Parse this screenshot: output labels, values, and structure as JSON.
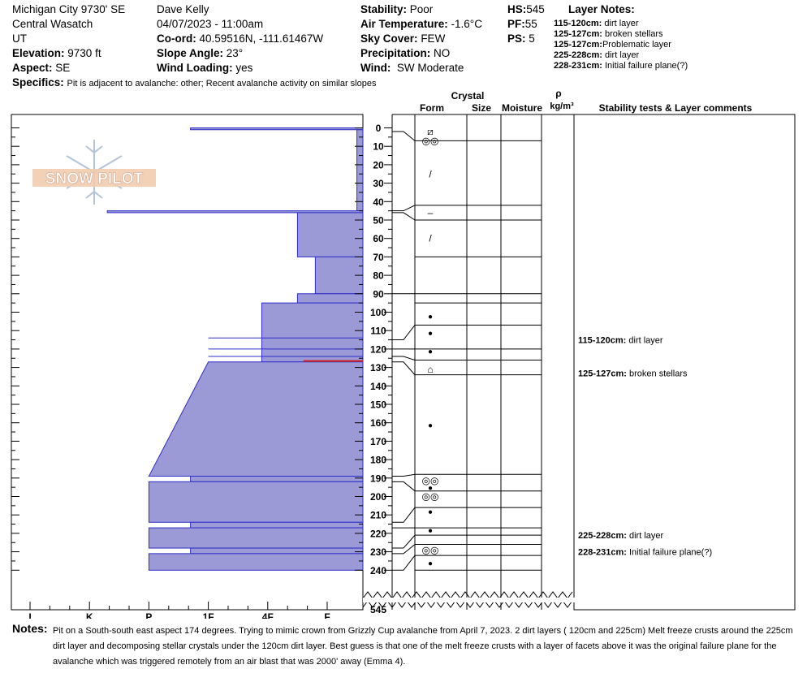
{
  "header": {
    "location": "Michigan City 9730' SE",
    "range": "Central Wasatch",
    "state": "UT",
    "elevation_label": "Elevation:",
    "elevation": "9730 ft",
    "aspect_label": "Aspect:",
    "aspect": "SE",
    "observer": "Dave Kelly",
    "datetime": "04/07/2023 - 11:00am",
    "coord_label": "Co-ord:",
    "coord": "40.59516N, -111.61467W",
    "slope_label": "Slope Angle:",
    "slope": "23°",
    "wind_loading_label": "Wind Loading:",
    "wind_loading": "yes",
    "stability_label": "Stability:",
    "stability": "Poor",
    "air_temp_label": "Air Temperature:",
    "air_temp": "-1.6°C",
    "sky_label": "Sky Cover:",
    "sky": "FEW",
    "precip_label": "Precipitation:",
    "precip": "NO",
    "wind_label": "Wind:",
    "wind": "SW Moderate",
    "hs_label": "HS:",
    "hs": "545",
    "pf_label": "PF:",
    "pf": "55",
    "ps_label": "PS:",
    "ps": "5",
    "specifics_label": "Specifics:",
    "specifics": "Pit is adjacent to avalanche: other;  Recent avalanche activity on similar slopes"
  },
  "layer_notes": {
    "title": "Layer Notes:",
    "items": [
      {
        "range": "115-120cm:",
        "text": "dirt layer"
      },
      {
        "range": "125-127cm:",
        "text": "broken stellars"
      },
      {
        "range": "125-127cm:",
        "text": "Problematic layer"
      },
      {
        "range": "225-228cm:",
        "text": "dirt layer"
      },
      {
        "range": "228-231cm:",
        "text": "Initial failure plane(?)"
      }
    ]
  },
  "columns": {
    "crystal": "Crystal",
    "form": "Form",
    "size": "Size",
    "moisture": "Moisture",
    "rho": "ρ",
    "density_unit": "kg/m³",
    "stability_comments": "Stability tests & Layer comments"
  },
  "watermark": "SNOW PILOT",
  "notes_label": "Notes:",
  "notes": "Pit on a South-south east aspect 174 degrees. Trying to mimic crown from Grizzly Cup avalanche from April 7, 2023. 2 dirt layers ( 120cm and 225cm) Melt freeze crusts around the 225cm dirt layer and decomposing stellar crystals under the 120cm dirt layer. Best guess is that one of the melt freeze crusts with a layer of facets above it was the original failure plane for the avalanche which was triggered remotely from an air blast that was 2000' away (Emma 4).",
  "chart_data": {
    "type": "bar",
    "orientation": "horizontal",
    "y_axis": "depth (cm)",
    "ylim": [
      0,
      240
    ],
    "y_ticks": [
      0,
      10,
      20,
      30,
      40,
      50,
      60,
      70,
      80,
      90,
      100,
      110,
      120,
      130,
      140,
      150,
      160,
      170,
      180,
      190,
      200,
      210,
      220,
      230,
      240
    ],
    "y_break_label": "545",
    "x_categories": [
      "I",
      "K",
      "P",
      "1F",
      "4F",
      "F"
    ],
    "hardness_layers": [
      {
        "top": 0,
        "bottom": 1,
        "hardness": "P+"
      },
      {
        "top": 1,
        "bottom": 45,
        "hardness": "F+"
      },
      {
        "top": 45,
        "bottom": 46,
        "hardness": "K+"
      },
      {
        "top": 46,
        "bottom": 70,
        "hardness": "4F-"
      },
      {
        "top": 70,
        "bottom": 90,
        "hardness": "4F+"
      },
      {
        "top": 90,
        "bottom": 95,
        "hardness": "4F-"
      },
      {
        "top": 95,
        "bottom": 127,
        "hardness": "1F+"
      },
      {
        "top": 127,
        "bottom": 189,
        "hardness_top": "1F",
        "hardness_bottom": "P"
      },
      {
        "top": 189,
        "bottom": 192,
        "hardness": "P+"
      },
      {
        "top": 192,
        "bottom": 214,
        "hardness": "P"
      },
      {
        "top": 214,
        "bottom": 217,
        "hardness": "P+"
      },
      {
        "top": 217,
        "bottom": 228,
        "hardness": "P"
      },
      {
        "top": 228,
        "bottom": 231,
        "hardness": "P+"
      },
      {
        "top": 231,
        "bottom": 240,
        "hardness": "P"
      }
    ],
    "hardness_level_values": [
      [
        0,
        1,
        2.7
      ],
      [
        1,
        45,
        5.5
      ],
      [
        45,
        46,
        1.3
      ],
      [
        46,
        70,
        4.5
      ],
      [
        70,
        90,
        4.8
      ],
      [
        90,
        95,
        4.5
      ],
      [
        95,
        127,
        3.9
      ],
      [
        127,
        189,
        3.0,
        2.0
      ],
      [
        189,
        192,
        2.7
      ],
      [
        192,
        214,
        2.0
      ],
      [
        214,
        217,
        2.7
      ],
      [
        217,
        228,
        2.0
      ],
      [
        228,
        231,
        2.7
      ],
      [
        231,
        240,
        2.0
      ]
    ],
    "hardness_scale": {
      "I": 0,
      "K": 1,
      "P": 2,
      "1F": 3,
      "4F": 4,
      "F": 5
    },
    "horizontal_lines": [
      114,
      120,
      124
    ],
    "red_marker": {
      "depth": 126.5,
      "from_hardness": 4.6
    },
    "right_layer_boundaries": [
      7,
      42,
      50,
      70,
      90,
      95,
      107,
      120,
      126,
      134,
      188,
      197,
      206,
      217,
      221,
      226,
      232,
      240
    ],
    "grain_forms": [
      {
        "depth": 2,
        "symbol": "⧄"
      },
      {
        "depth": 7,
        "symbol": "◎◎"
      },
      {
        "depth": 25,
        "symbol": "/"
      },
      {
        "depth": 46,
        "symbol": "–"
      },
      {
        "depth": 60,
        "symbol": "/"
      },
      {
        "depth": 102,
        "symbol": "●"
      },
      {
        "depth": 111,
        "symbol": "●"
      },
      {
        "depth": 121,
        "symbol": "●"
      },
      {
        "depth": 131,
        "symbol": "⌂"
      },
      {
        "depth": 161,
        "symbol": "●"
      },
      {
        "depth": 191.5,
        "symbol": "◎◎"
      },
      {
        "depth": 195,
        "symbol": "●"
      },
      {
        "depth": 200,
        "symbol": "◎◎"
      },
      {
        "depth": 208,
        "symbol": "●"
      },
      {
        "depth": 218,
        "symbol": "●"
      },
      {
        "depth": 229,
        "symbol": "◎◎"
      },
      {
        "depth": 236,
        "symbol": "●"
      }
    ],
    "comments": [
      {
        "depth": 115,
        "range": "115-120cm:",
        "text": "dirt layer"
      },
      {
        "depth": 133,
        "range": "125-127cm:",
        "text": "broken stellars"
      },
      {
        "depth": 221,
        "range": "225-228cm:",
        "text": "dirt layer"
      },
      {
        "depth": 230,
        "range": "228-231cm:",
        "text": "Initial failure plane(?)"
      }
    ]
  }
}
